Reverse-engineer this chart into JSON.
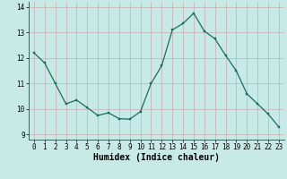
{
  "x": [
    0,
    1,
    2,
    3,
    4,
    5,
    6,
    7,
    8,
    9,
    10,
    11,
    12,
    13,
    14,
    15,
    16,
    17,
    18,
    19,
    20,
    21,
    22,
    23
  ],
  "y": [
    12.2,
    11.8,
    11.0,
    10.2,
    10.35,
    10.05,
    9.75,
    9.85,
    9.62,
    9.6,
    9.9,
    11.0,
    11.7,
    13.1,
    13.35,
    13.75,
    13.05,
    12.75,
    12.1,
    11.5,
    10.6,
    10.2,
    9.8,
    9.3
  ],
  "line_color": "#1a6b5e",
  "marker": "s",
  "marker_size": 1.8,
  "line_width": 0.9,
  "background_color": "#c8eae6",
  "grid_color": "#c8aeb0",
  "xlabel": "Humidex (Indice chaleur)",
  "xlabel_fontsize": 7,
  "ylim": [
    8.8,
    14.2
  ],
  "xlim": [
    -0.5,
    23.5
  ],
  "yticks": [
    9,
    10,
    11,
    12,
    13,
    14
  ],
  "xticks": [
    0,
    1,
    2,
    3,
    4,
    5,
    6,
    7,
    8,
    9,
    10,
    11,
    12,
    13,
    14,
    15,
    16,
    17,
    18,
    19,
    20,
    21,
    22,
    23
  ],
  "tick_fontsize": 5.5,
  "spine_color": "#3a6060"
}
